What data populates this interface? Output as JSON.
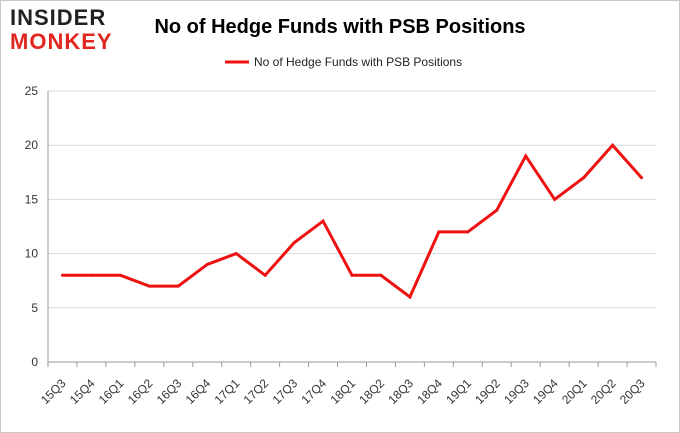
{
  "logo": {
    "line1": "INSIDER",
    "line2": "MONKEY"
  },
  "colors": {
    "series": "#ee1111",
    "grid": "#d9d9d9",
    "axis": "#999999"
  },
  "chart_data": {
    "type": "line",
    "title": "No of Hedge Funds with PSB Positions",
    "xlabel": "",
    "ylabel": "",
    "ylim": [
      0,
      25
    ],
    "yticks": [
      0,
      5,
      10,
      15,
      20,
      25
    ],
    "grid": true,
    "legend": "top-center",
    "categories": [
      "15Q3",
      "15Q4",
      "16Q1",
      "16Q2",
      "16Q3",
      "16Q4",
      "17Q1",
      "17Q2",
      "17Q3",
      "17Q4",
      "18Q1",
      "18Q2",
      "18Q3",
      "18Q4",
      "19Q1",
      "19Q2",
      "19Q3",
      "19Q4",
      "20Q1",
      "20Q2",
      "20Q3"
    ],
    "series": [
      {
        "name": "No of Hedge Funds with PSB Positions",
        "values": [
          8,
          8,
          8,
          7,
          7,
          9,
          10,
          8,
          11,
          13,
          8,
          8,
          6,
          12,
          12,
          14,
          19,
          15,
          17,
          20,
          17
        ]
      }
    ]
  }
}
